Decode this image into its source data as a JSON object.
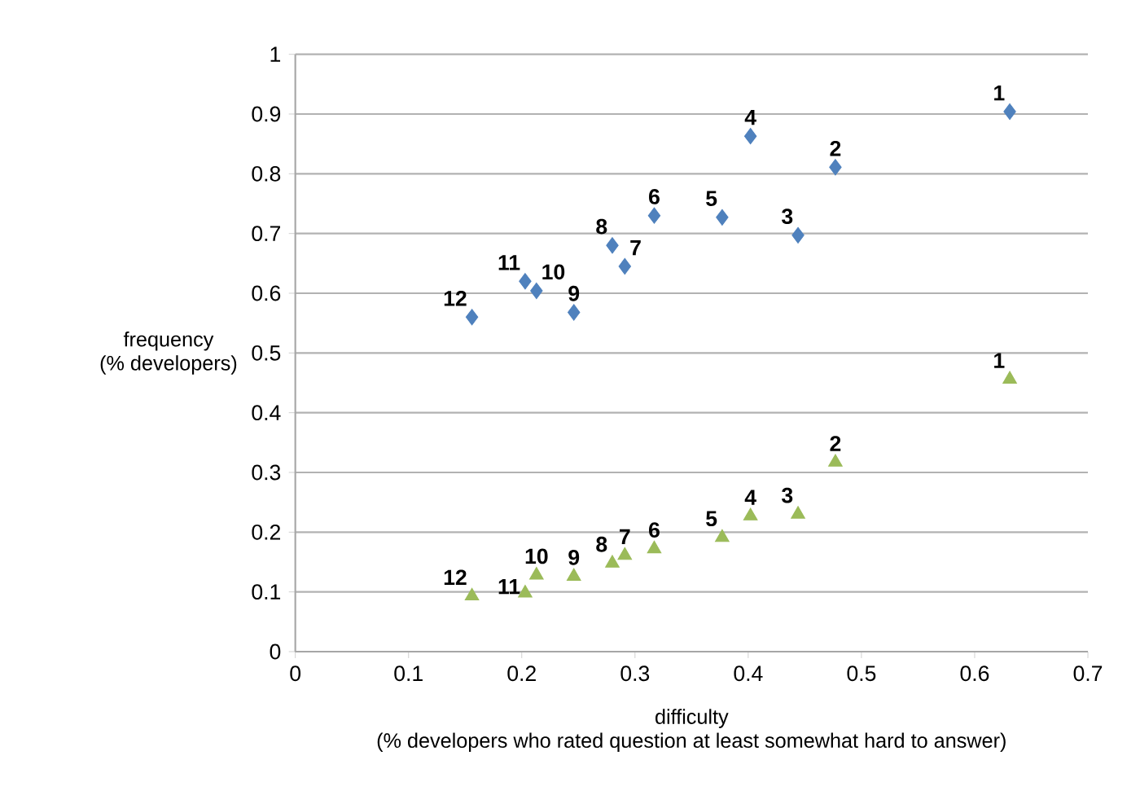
{
  "chart_data": {
    "type": "scatter",
    "xlabel": "difficulty\n(% developers who rated question at least somewhat hard to answer)",
    "ylabel": "frequency\n(% developers)",
    "xlim": [
      0,
      0.7
    ],
    "xticks": [
      0,
      0.1,
      0.2,
      0.3,
      0.4,
      0.5,
      0.6,
      0.7
    ],
    "ylim": [
      0,
      1
    ],
    "yticks": [
      0,
      0.1,
      0.2,
      0.3,
      0.4,
      0.5,
      0.6,
      0.7,
      0.8,
      0.9,
      1
    ],
    "grid": "y",
    "series": [
      {
        "color": "#4f81bd",
        "marker": "diamond",
        "x": [
          0.631,
          0.477,
          0.444,
          0.402,
          0.377,
          0.317,
          0.291,
          0.28,
          0.246,
          0.213,
          0.203,
          0.156
        ],
        "values": [
          0.904,
          0.811,
          0.697,
          0.863,
          0.727,
          0.73,
          0.645,
          0.68,
          0.568,
          0.604,
          0.62,
          0.56
        ]
      },
      {
        "color": "#9bbb59",
        "marker": "triangle",
        "x": [
          0.631,
          0.477,
          0.444,
          0.402,
          0.377,
          0.317,
          0.291,
          0.28,
          0.246,
          0.213,
          0.203,
          0.156
        ],
        "values": [
          0.456,
          0.317,
          0.23,
          0.227,
          0.191,
          0.172,
          0.161,
          0.148,
          0.126,
          0.128,
          0.098,
          0.093
        ]
      }
    ],
    "annotations": [
      {
        "text": "1",
        "x": 0.631,
        "y": 0.904
      },
      {
        "text": "2",
        "x": 0.477,
        "y": 0.811
      },
      {
        "text": "3",
        "x": 0.444,
        "y": 0.697
      },
      {
        "text": "4",
        "x": 0.402,
        "y": 0.863
      },
      {
        "text": "5",
        "x": 0.377,
        "y": 0.727
      },
      {
        "text": "6",
        "x": 0.317,
        "y": 0.73
      },
      {
        "text": "7",
        "x": 0.291,
        "y": 0.645
      },
      {
        "text": "8",
        "x": 0.28,
        "y": 0.68
      },
      {
        "text": "9",
        "x": 0.246,
        "y": 0.568
      },
      {
        "text": "10",
        "x": 0.213,
        "y": 0.604
      },
      {
        "text": "11",
        "x": 0.203,
        "y": 0.62
      },
      {
        "text": "12",
        "x": 0.156,
        "y": 0.56
      },
      {
        "text": "1",
        "x": 0.631,
        "y": 0.456
      },
      {
        "text": "2",
        "x": 0.477,
        "y": 0.317
      },
      {
        "text": "3",
        "x": 0.444,
        "y": 0.23
      },
      {
        "text": "4",
        "x": 0.402,
        "y": 0.227
      },
      {
        "text": "5",
        "x": 0.377,
        "y": 0.191
      },
      {
        "text": "6",
        "x": 0.317,
        "y": 0.172
      },
      {
        "text": "7",
        "x": 0.291,
        "y": 0.161
      },
      {
        "text": "8",
        "x": 0.28,
        "y": 0.148
      },
      {
        "text": "9",
        "x": 0.246,
        "y": 0.126
      },
      {
        "text": "10",
        "x": 0.213,
        "y": 0.128
      },
      {
        "text": "11",
        "x": 0.203,
        "y": 0.098
      },
      {
        "text": "12",
        "x": 0.156,
        "y": 0.093
      }
    ]
  }
}
